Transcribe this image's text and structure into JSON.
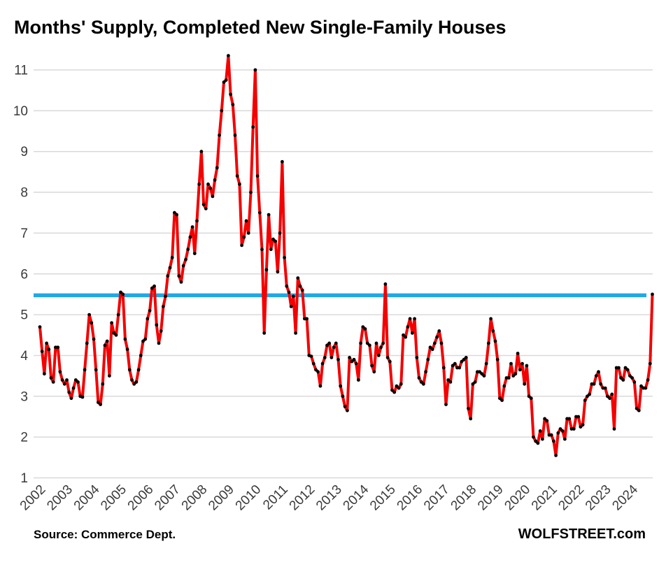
{
  "title": "Months' Supply, Completed New Single-Family Houses",
  "footer": {
    "source": "Source: Commerce Dept.",
    "brand": "WOLFSTREET.com"
  },
  "colors": {
    "series_line": "#f40000",
    "benchmark_line": "#1fa8e8",
    "gridline": "#d9d9d9",
    "marker": "#000000",
    "tick_text": "#3a3a3a",
    "title_text": "#000000"
  },
  "chart_data": {
    "type": "line",
    "title": "Months' Supply, Completed New Single-Family Houses",
    "xlabel": "",
    "ylabel": "",
    "grid": "horizontal",
    "legend": "none",
    "y_axis_range": [
      1,
      11
    ],
    "y_tick_labels": [
      "1",
      "2",
      "3",
      "4",
      "5",
      "6",
      "7",
      "8",
      "9",
      "10",
      "11"
    ],
    "x_tick_labels": [
      "2002",
      "2003",
      "2004",
      "2005",
      "2006",
      "2007",
      "2008",
      "2009",
      "2010",
      "2011",
      "2012",
      "2013",
      "2014",
      "2015",
      "2016",
      "2017",
      "2018",
      "2019",
      "2020",
      "2021",
      "2022",
      "2023",
      "2024"
    ],
    "benchmark_line": {
      "value": 5.5,
      "description": "horizontal reference line at about 5.5 months"
    },
    "series": [
      {
        "name": "Months' supply, completed new single-family houses (months)",
        "start": "2002-01",
        "end": "2024-10",
        "frequency": "monthly",
        "values": [
          4.7,
          4.1,
          3.55,
          4.3,
          4.15,
          3.45,
          3.35,
          4.2,
          4.2,
          3.6,
          3.4,
          3.3,
          3.4,
          3.1,
          2.95,
          3.2,
          3.4,
          3.35,
          3.0,
          2.98,
          3.65,
          4.3,
          5.0,
          4.8,
          4.4,
          3.65,
          2.85,
          2.8,
          3.3,
          4.25,
          4.35,
          3.5,
          4.8,
          4.55,
          4.5,
          5.0,
          5.55,
          5.5,
          4.4,
          4.15,
          3.65,
          3.4,
          3.3,
          3.35,
          3.65,
          4.0,
          4.35,
          4.4,
          4.9,
          5.1,
          5.65,
          5.7,
          4.75,
          4.3,
          4.6,
          5.2,
          5.45,
          5.95,
          6.15,
          6.4,
          7.5,
          7.45,
          5.95,
          5.8,
          6.2,
          6.35,
          6.6,
          6.9,
          7.15,
          6.5,
          7.3,
          8.2,
          9.0,
          7.7,
          7.6,
          8.2,
          8.1,
          7.9,
          8.3,
          8.6,
          9.4,
          10.0,
          10.7,
          10.75,
          11.35,
          10.4,
          10.15,
          9.4,
          8.4,
          8.2,
          6.7,
          6.9,
          7.3,
          7.0,
          8.0,
          9.6,
          11.0,
          8.4,
          7.5,
          6.6,
          4.55,
          6.1,
          7.45,
          6.6,
          6.85,
          6.8,
          6.05,
          7.0,
          8.75,
          6.4,
          5.7,
          5.55,
          5.2,
          5.45,
          4.55,
          5.9,
          5.7,
          5.6,
          4.9,
          4.9,
          4.0,
          3.98,
          3.8,
          3.65,
          3.6,
          3.25,
          3.8,
          3.95,
          4.25,
          4.3,
          3.95,
          4.2,
          4.3,
          3.9,
          3.25,
          3.0,
          2.75,
          2.65,
          3.95,
          3.85,
          3.9,
          3.8,
          3.4,
          4.3,
          4.7,
          4.65,
          4.3,
          4.25,
          3.75,
          3.6,
          4.3,
          4.0,
          4.2,
          4.3,
          5.75,
          3.95,
          3.85,
          3.15,
          3.1,
          3.25,
          3.2,
          3.3,
          4.5,
          4.45,
          4.7,
          4.9,
          4.55,
          4.9,
          3.95,
          3.45,
          3.35,
          3.3,
          3.6,
          3.9,
          4.2,
          4.15,
          4.3,
          4.45,
          4.6,
          4.3,
          3.7,
          2.8,
          3.4,
          3.35,
          3.75,
          3.8,
          3.7,
          3.7,
          3.85,
          3.9,
          3.95,
          2.7,
          2.45,
          3.3,
          3.35,
          3.6,
          3.6,
          3.55,
          3.5,
          3.8,
          4.3,
          4.9,
          4.6,
          4.35,
          3.9,
          2.95,
          2.9,
          3.25,
          3.45,
          3.45,
          3.8,
          3.5,
          3.55,
          4.05,
          3.65,
          3.8,
          3.3,
          3.75,
          3.0,
          2.95,
          2.0,
          1.9,
          1.85,
          2.15,
          1.95,
          2.45,
          2.4,
          2.05,
          2.05,
          1.9,
          1.55,
          2.1,
          2.2,
          2.15,
          1.95,
          2.45,
          2.45,
          2.2,
          2.2,
          2.5,
          2.5,
          2.25,
          2.3,
          2.9,
          3.0,
          3.05,
          3.3,
          3.3,
          3.5,
          3.6,
          3.3,
          3.2,
          3.2,
          3.0,
          2.95,
          3.05,
          2.2,
          3.7,
          3.7,
          3.45,
          3.4,
          3.7,
          3.65,
          3.5,
          3.45,
          3.35,
          2.7,
          2.65,
          3.25,
          3.2,
          3.2,
          3.4,
          3.8,
          5.5
        ]
      }
    ]
  }
}
